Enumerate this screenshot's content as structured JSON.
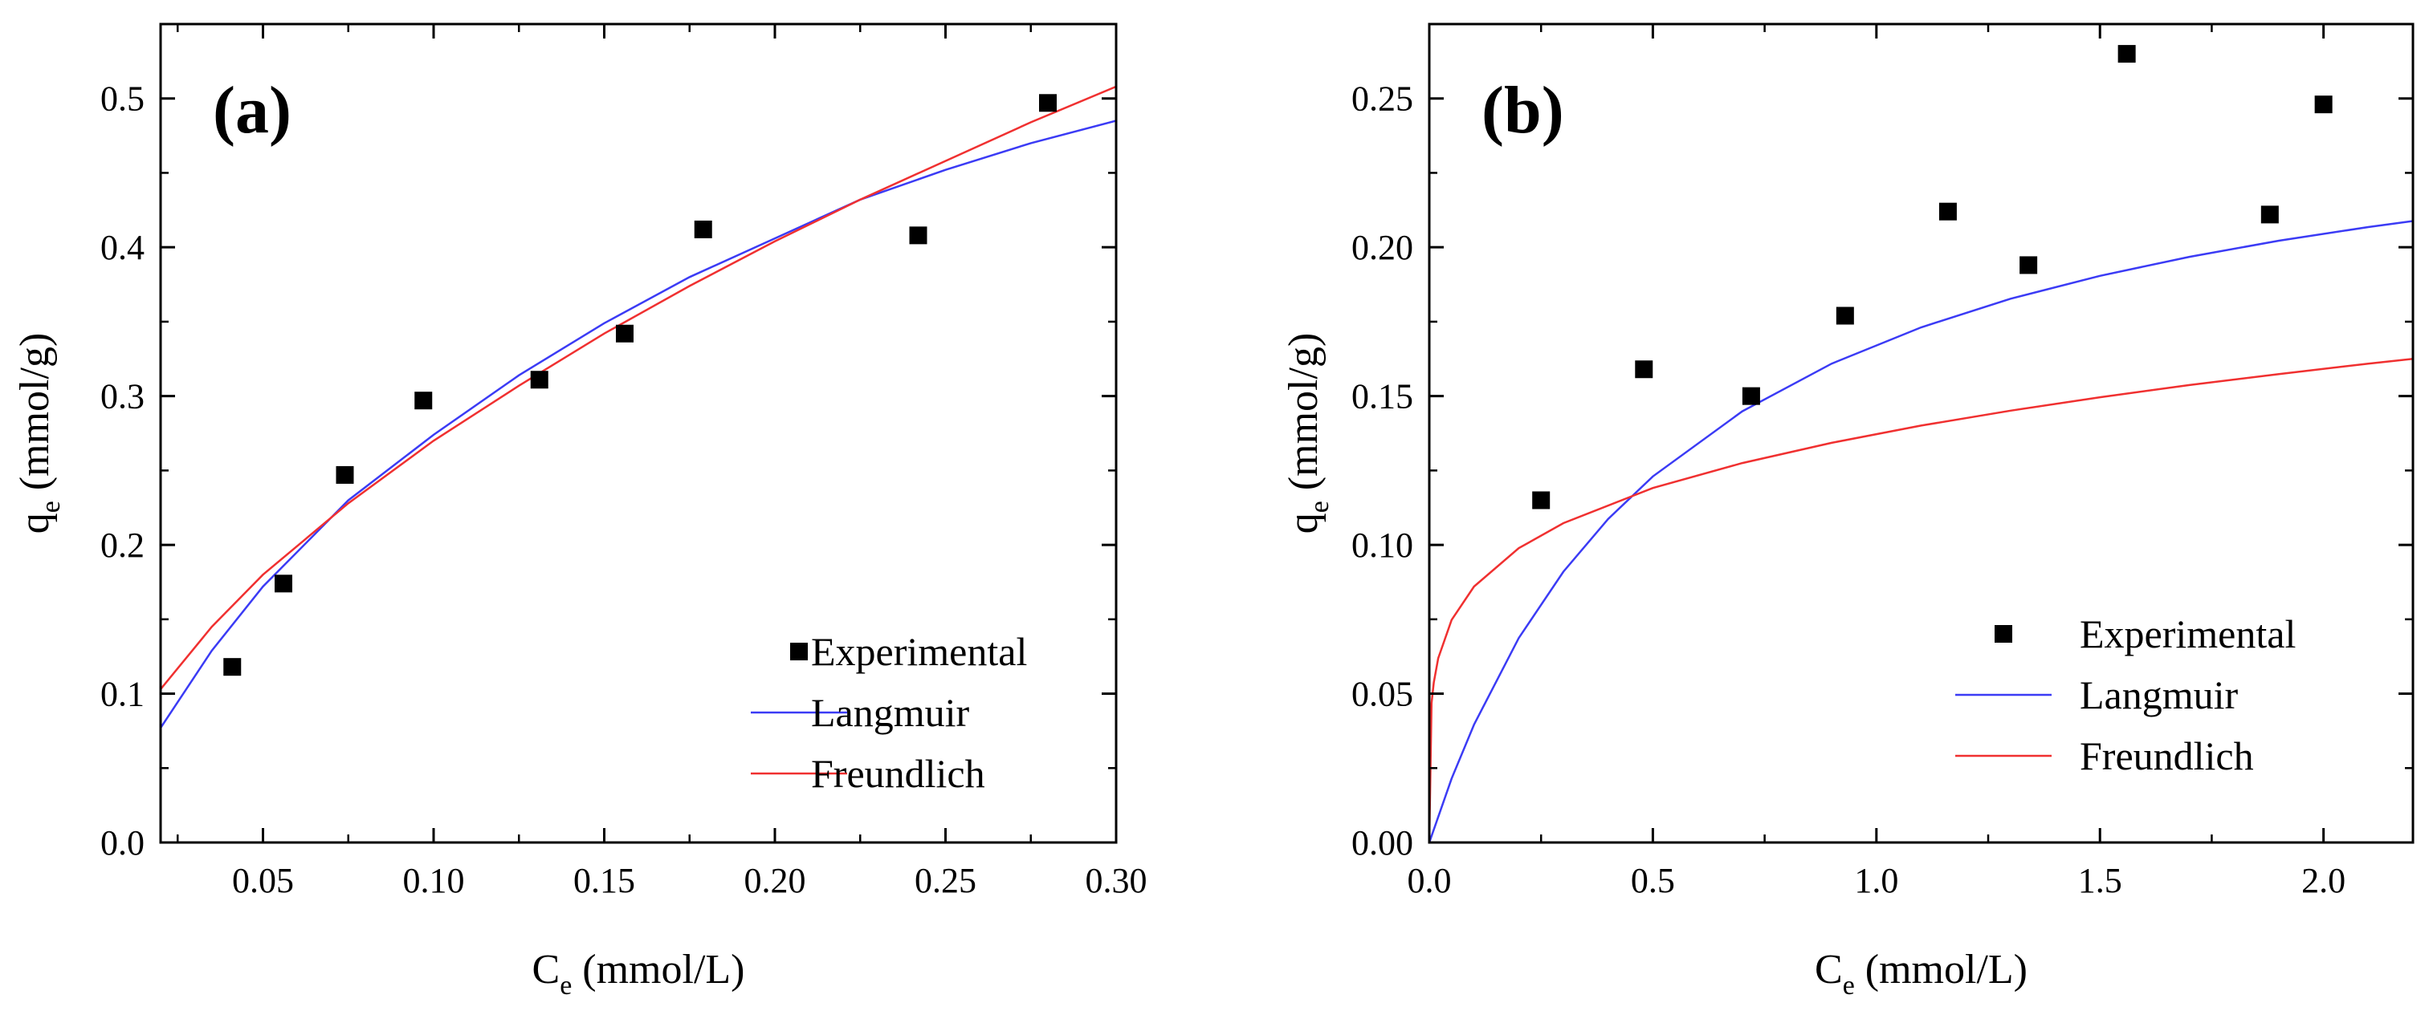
{
  "chart_data": [
    {
      "type": "scatter",
      "panel_label": "(a)",
      "xlabel": {
        "main": "C",
        "sub": "e",
        "rest": " (mmol/L)"
      },
      "ylabel": {
        "main": "q",
        "sub": "e",
        "rest": " (mmol/g)"
      },
      "xlim": [
        0.02,
        0.3
      ],
      "ylim": [
        0.0,
        0.55
      ],
      "x_ticks": [
        0.05,
        0.1,
        0.15,
        0.2,
        0.25,
        0.3
      ],
      "x_tick_labels": [
        "0.05",
        "0.10",
        "0.15",
        "0.20",
        "0.25",
        "0.30"
      ],
      "y_ticks": [
        0.0,
        0.1,
        0.2,
        0.3,
        0.4,
        0.5
      ],
      "y_tick_labels": [
        "0.0",
        "0.1",
        "0.2",
        "0.3",
        "0.4",
        "0.5"
      ],
      "legend_position": "bottom-right",
      "series": [
        {
          "name": "Experimental",
          "kind": "points",
          "color": "#000000",
          "x": [
            0.041,
            0.056,
            0.074,
            0.097,
            0.131,
            0.156,
            0.179,
            0.242,
            0.28
          ],
          "y": [
            0.118,
            0.174,
            0.247,
            0.297,
            0.311,
            0.342,
            0.412,
            0.408,
            0.497
          ]
        },
        {
          "name": "Langmuir",
          "kind": "line",
          "color": "#3b3bf5",
          "x": [
            0.02,
            0.035,
            0.05,
            0.075,
            0.1,
            0.125,
            0.15,
            0.175,
            0.2,
            0.225,
            0.25,
            0.275,
            0.3
          ],
          "y": [
            0.077,
            0.129,
            0.172,
            0.23,
            0.274,
            0.314,
            0.349,
            0.38,
            0.406,
            0.432,
            0.452,
            0.47,
            0.485
          ]
        },
        {
          "name": "Freundlich",
          "kind": "line",
          "color": "#f03030",
          "x": [
            0.02,
            0.035,
            0.05,
            0.075,
            0.1,
            0.125,
            0.15,
            0.175,
            0.2,
            0.225,
            0.25,
            0.275,
            0.3
          ],
          "y": [
            0.103,
            0.145,
            0.18,
            0.228,
            0.27,
            0.307,
            0.342,
            0.374,
            0.404,
            0.432,
            0.458,
            0.484,
            0.508
          ]
        }
      ]
    },
    {
      "type": "scatter",
      "panel_label": "(b)",
      "xlabel": {
        "main": "C",
        "sub": "e",
        "rest": " (mmol/L)"
      },
      "ylabel": {
        "main": "q",
        "sub": "e",
        "rest": " (mmol/g)"
      },
      "xlim": [
        0.0,
        2.2
      ],
      "ylim": [
        0.0,
        0.275
      ],
      "x_ticks": [
        0.0,
        0.5,
        1.0,
        1.5,
        2.0
      ],
      "x_tick_labels": [
        "0.0",
        "0.5",
        "1.0",
        "1.5",
        "2.0"
      ],
      "y_ticks": [
        0.0,
        0.05,
        0.1,
        0.15,
        0.2,
        0.25
      ],
      "y_tick_labels": [
        "0.00",
        "0.05",
        "0.10",
        "0.15",
        "0.20",
        "0.25"
      ],
      "legend_position": "bottom-right",
      "series": [
        {
          "name": "Experimental",
          "kind": "points",
          "color": "#000000",
          "x": [
            0.25,
            0.48,
            0.72,
            0.93,
            1.16,
            1.34,
            1.56,
            1.88,
            2.0
          ],
          "y": [
            0.115,
            0.159,
            0.15,
            0.177,
            0.212,
            0.194,
            0.265,
            0.211,
            0.248
          ]
        },
        {
          "name": "Langmuir",
          "kind": "line",
          "color": "#3b3bf5",
          "x": [
            0.0,
            0.05,
            0.1,
            0.2,
            0.3,
            0.4,
            0.5,
            0.7,
            0.9,
            1.1,
            1.3,
            1.5,
            1.7,
            1.9,
            2.1,
            2.2
          ],
          "y": [
            0.0,
            0.0215,
            0.0396,
            0.0687,
            0.091,
            0.1087,
            0.123,
            0.1449,
            0.1609,
            0.1731,
            0.1827,
            0.1904,
            0.1968,
            0.2022,
            0.2068,
            0.2088
          ]
        },
        {
          "name": "Freundlich",
          "kind": "line",
          "color": "#f03030",
          "x": [
            0.0,
            0.005,
            0.01,
            0.02,
            0.05,
            0.1,
            0.2,
            0.3,
            0.5,
            0.7,
            0.9,
            1.1,
            1.3,
            1.5,
            1.7,
            1.9,
            2.1,
            2.2
          ],
          "y": [
            0.0,
            0.0468,
            0.0538,
            0.0619,
            0.0748,
            0.086,
            0.0989,
            0.1073,
            0.1191,
            0.1275,
            0.1343,
            0.1401,
            0.1451,
            0.1496,
            0.1537,
            0.1574,
            0.1609,
            0.1625
          ]
        }
      ]
    }
  ]
}
